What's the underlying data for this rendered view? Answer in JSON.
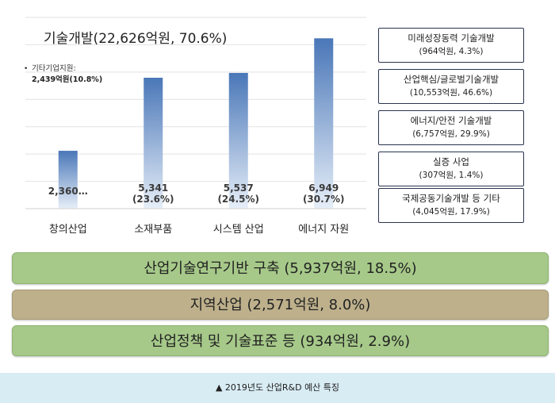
{
  "chart_data": {
    "type": "bar",
    "title": "기술개발(22,626억원, 70.6%)",
    "categories": [
      "창의산업",
      "소재부품",
      "시스템 산업",
      "에너지 자원"
    ],
    "values": [
      2360,
      5341,
      5537,
      6949
    ],
    "value_labels": [
      "2,360…",
      "5,341\n(23.6%)",
      "5,537\n(24.5%)",
      "6,949\n(30.7%)"
    ],
    "ylim": [
      0,
      7800
    ],
    "grid": true,
    "bar_color_top": "#4a77b8",
    "bar_color_bottom": "#e6eef8"
  },
  "note": {
    "bullet": "•",
    "line1": "기타기업지원:",
    "line2": "2,439억원(10.8%)"
  },
  "right_boxes": [
    {
      "title": "미래성장동력 기술개발",
      "sub": "(964억원, 4.3%)"
    },
    {
      "title": "산업핵심/글로벌기술개발",
      "sub": "(10,553억원, 46.6%)"
    },
    {
      "title": "에너지/안전 기술개발",
      "sub": "(6,757억원, 29.9%)"
    },
    {
      "title": "실증 사업",
      "sub": "(307억원, 1.4%)"
    },
    {
      "title": "국제공동기술개발 등 기타",
      "sub": "(4,045억원, 17.9%)"
    }
  ],
  "bottom_bars": [
    {
      "label": "산업기술연구기반 구축 (5,937억원, 18.5%)",
      "color": "#a6c989"
    },
    {
      "label": "지역산업 (2,571억원, 8.0%)",
      "color": "#bdb08b"
    },
    {
      "label": "산업정책 및 기술표준 등 (934억원, 2.9%)",
      "color": "#a6c989"
    }
  ],
  "caption": "▲ 2019년도 산업R&D 예산 특징"
}
